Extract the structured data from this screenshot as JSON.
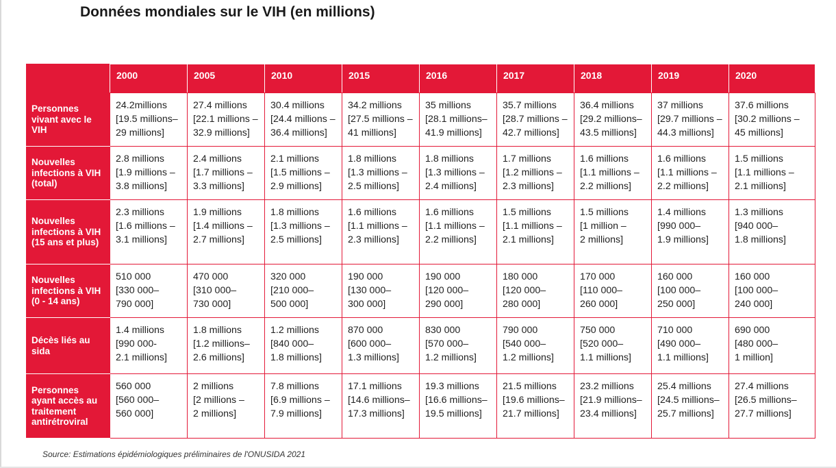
{
  "title": "Données mondiales sur le VIH (en millions)",
  "source": "Source: Estimations épidémiologiques préliminaires de l'ONUSIDA 2021",
  "colors": {
    "header_red": "#e31837",
    "text": "#1f1f1f",
    "header_text": "#ffffff"
  },
  "chart_data": {
    "type": "table",
    "title": "Données mondiales sur le VIH (en millions)",
    "columns": [
      "2000",
      "2005",
      "2010",
      "2015",
      "2016",
      "2017",
      "2018",
      "2019",
      "2020"
    ],
    "rows": [
      {
        "label": "Personnes vivant avec le VIH",
        "cells": [
          [
            "24.2millions",
            "[19.5 millions–",
            "29 millions]"
          ],
          [
            "27.4 millions",
            "[22.1 millions –",
            "32.9 millions]"
          ],
          [
            "30.4 millions",
            "[24.4 millions –",
            "36.4 millions]"
          ],
          [
            "34.2 millions",
            "[27.5 millions –",
            "41 millions]"
          ],
          [
            "35 millions",
            "[28.1 millions–",
            "41.9 millions]"
          ],
          [
            "35.7 millions",
            "[28.7 millions –",
            "42.7 millions]"
          ],
          [
            "36.4 millions",
            "[29.2 millions–",
            "43.5 millions]"
          ],
          [
            "37 millions",
            "[29.7 millions –",
            "44.3 millions]"
          ],
          [
            "37.6 millions",
            "[30.2 millions –",
            "45 millions]"
          ]
        ]
      },
      {
        "label": "Nouvelles infections à VIH (total)",
        "cells": [
          [
            "2.8 millions",
            "[1.9 millions –",
            "3.8 millions]"
          ],
          [
            "2.4 millions",
            "[1.7 millions –",
            "3.3 millions]"
          ],
          [
            "2.1 millions",
            "[1.5 millions –",
            "2.9 millions]"
          ],
          [
            "1.8 millions",
            "[1.3 millions –",
            "2.5 millions]"
          ],
          [
            "1.8 millions",
            "[1.3 millions –",
            "2.4 millions]"
          ],
          [
            "1.7 millions",
            "[1.2 millions –",
            "2.3 millions]"
          ],
          [
            "1.6 millions",
            "[1.1 millions –",
            "2.2 millions]"
          ],
          [
            "1.6 millions",
            "[1.1 millions –",
            "2.2 millions]"
          ],
          [
            "1.5 millions",
            "[1.1 millions –",
            "2.1 millions]"
          ]
        ]
      },
      {
        "label": "Nouvelles infections à VIH (15 ans et plus)",
        "cells": [
          [
            "2.3 millions",
            "[1.6 millions –",
            "3.1 millions]"
          ],
          [
            "1.9 millions",
            "[1.4 millions –",
            "2.7 millions]"
          ],
          [
            "1.8 millions",
            "[1.3 millions –",
            "2.5 millions]"
          ],
          [
            "1.6 millions",
            "[1.1 millions –",
            "2.3 millions]"
          ],
          [
            "1.6 millions",
            "[1.1 millions –",
            "2.2 millions]"
          ],
          [
            "1.5 millions",
            "[1.1 millions –",
            "2.1 millions]"
          ],
          [
            "1.5 millions",
            "[1 million –",
            "2 millions]"
          ],
          [
            "1.4 millions",
            "[990 000–",
            "1.9 millions]"
          ],
          [
            "1.3 millions",
            "[940 000–",
            "1.8 millions]"
          ]
        ]
      },
      {
        "label": "Nouvelles infections à VIH (0 - 14 ans)",
        "cells": [
          [
            "510 000",
            "[330 000–",
            "790 000]"
          ],
          [
            "470 000",
            "[310 000–",
            "730 000]"
          ],
          [
            "320 000",
            "[210 000–",
            "500 000]"
          ],
          [
            "190 000",
            "[130 000–",
            "300 000]"
          ],
          [
            "190 000",
            "[120 000–",
            "290 000]"
          ],
          [
            "180 000",
            "[120 000–",
            "280 000]"
          ],
          [
            "170 000",
            "[110 000–",
            "260 000]"
          ],
          [
            "160 000",
            "[100 000–",
            "250 000]"
          ],
          [
            "160 000",
            "[100 000–",
            "240 000]"
          ]
        ]
      },
      {
        "label": "Décès liés au sida",
        "cells": [
          [
            "1.4 millions",
            "[990 000-",
            "2.1 millions]"
          ],
          [
            "1.8 millions",
            "[1.2 millions–",
            "2.6 millions]"
          ],
          [
            "1.2 millions",
            "[840 000–",
            "1.8 millions]"
          ],
          [
            "870 000",
            "[600 000–",
            "1.3 millions]"
          ],
          [
            "830 000",
            "[570 000–",
            "1.2 millions]"
          ],
          [
            "790 000",
            "[540 000–",
            "1.2 millions]"
          ],
          [
            "750 000",
            "[520 000–",
            "1.1 millions]"
          ],
          [
            "710 000",
            "[490 000–",
            "1.1 millions]"
          ],
          [
            "690 000",
            "[480 000–",
            "1 million]"
          ]
        ]
      },
      {
        "label": "Personnes ayant accès au traitement antirétroviral",
        "cells": [
          [
            "560 000",
            "[560 000–",
            "560 000]"
          ],
          [
            "2 millions",
            "[2 millions –",
            "2 millions]"
          ],
          [
            "7.8 millions",
            "[6.9 millions –",
            "7.9 millions]"
          ],
          [
            "17.1 millions",
            "[14.6 millions–",
            "17.3 millions]"
          ],
          [
            "19.3 millions",
            "[16.6 millions–",
            "19.5 millions]"
          ],
          [
            "21.5 millions",
            "[19.6 millions–",
            "21.7 millions]"
          ],
          [
            "23.2 millions",
            "[21.9 millions–",
            "23.4 millions]"
          ],
          [
            "25.4 millions",
            "[24.5 millions–",
            "25.7 millions]"
          ],
          [
            "27.4 millions",
            "[26.5 millions–",
            "27.7 millions]"
          ]
        ]
      }
    ]
  }
}
